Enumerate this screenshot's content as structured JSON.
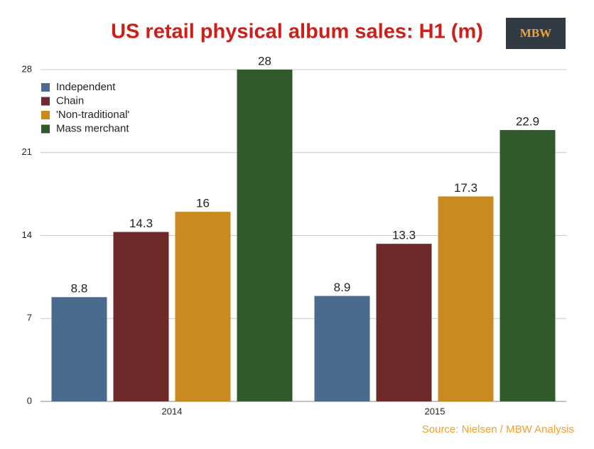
{
  "chart_data": {
    "type": "bar",
    "title": "US retail physical album sales: H1 (m)",
    "logo": "MBW",
    "source": "Source: Nielsen / MBW Analysis",
    "categories": [
      "2014",
      "2015"
    ],
    "series": [
      {
        "name": "Independent",
        "color": "#4a6a8e",
        "values": [
          8.8,
          8.9
        ]
      },
      {
        "name": "Chain",
        "color": "#6e2a2b",
        "values": [
          14.3,
          13.3
        ]
      },
      {
        "name": "'Non-traditional'",
        "color": "#c98a1f",
        "values": [
          16,
          17.3
        ]
      },
      {
        "name": "Mass merchant",
        "color": "#305a2b",
        "values": [
          28,
          22.9
        ]
      }
    ],
    "ylim": [
      0,
      28
    ],
    "yticks": [
      0,
      7,
      14,
      21,
      28
    ],
    "grid": true,
    "legend": "top-left"
  }
}
